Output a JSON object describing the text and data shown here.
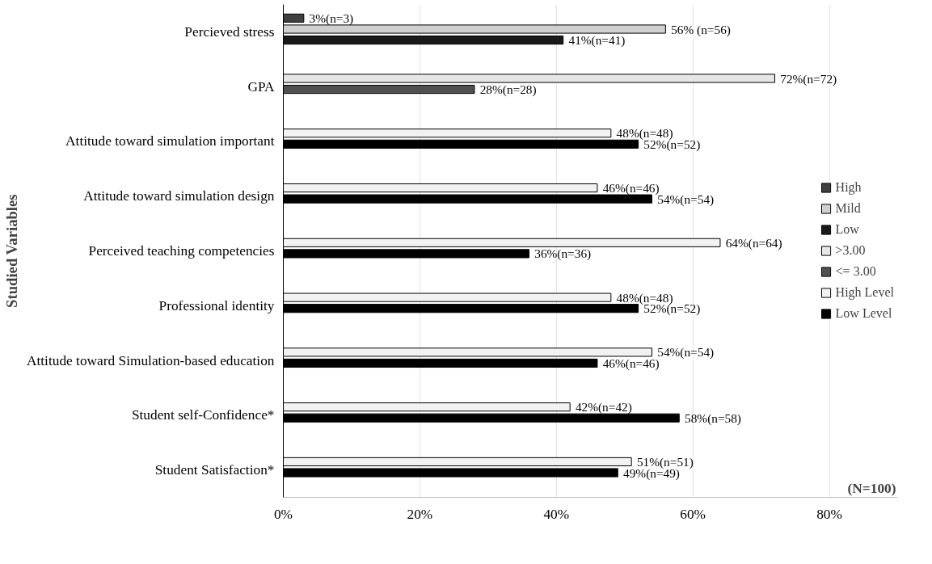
{
  "chart_data": {
    "type": "bar",
    "orientation": "horizontal",
    "ylabel": "Studied Variables",
    "categories": [
      "Percieved stress",
      "GPA",
      "Attitude toward simulation important",
      "Attitude toward simulation design",
      "Perceived teaching competencies",
      "Professional identity",
      "Attitude toward Simulation-based education",
      "Student self-Confidence*",
      "Student Satisfaction*"
    ],
    "series": [
      {
        "name": "High",
        "color": "#404040",
        "values": [
          3,
          null,
          null,
          null,
          null,
          null,
          null,
          null,
          null
        ],
        "value_labels": [
          "3%(n=3)",
          null,
          null,
          null,
          null,
          null,
          null,
          null,
          null
        ]
      },
      {
        "name": "Mild",
        "color": "#d0d0d0",
        "values": [
          56,
          null,
          null,
          null,
          null,
          null,
          null,
          null,
          null
        ],
        "value_labels": [
          "56% (n=56)",
          null,
          null,
          null,
          null,
          null,
          null,
          null,
          null
        ]
      },
      {
        "name": "Low",
        "color": "#1a1a1a",
        "values": [
          41,
          null,
          null,
          null,
          null,
          null,
          null,
          null,
          null
        ],
        "value_labels": [
          "41%(n=41)",
          null,
          null,
          null,
          null,
          null,
          null,
          null,
          null
        ]
      },
      {
        "name": ">3.00",
        "color": "#e6e6e6",
        "values": [
          null,
          72,
          null,
          null,
          null,
          null,
          null,
          null,
          null
        ],
        "value_labels": [
          null,
          "72%(n=72)",
          null,
          null,
          null,
          null,
          null,
          null,
          null
        ]
      },
      {
        "name": "<= 3.00",
        "color": "#505050",
        "values": [
          null,
          28,
          null,
          null,
          null,
          null,
          null,
          null,
          null
        ],
        "value_labels": [
          null,
          "28%(n=28)",
          null,
          null,
          null,
          null,
          null,
          null,
          null
        ]
      },
      {
        "name": "High Level",
        "color": "#f2f2f2",
        "values": [
          null,
          null,
          48,
          46,
          64,
          48,
          54,
          42,
          51
        ],
        "value_labels": [
          null,
          null,
          "48%(n=48)",
          "46%(n=46)",
          "64%(n=64)",
          "48%(n=48)",
          "54%(n=54)",
          "42%(n=42)",
          "51%(n=51)"
        ]
      },
      {
        "name": "Low Level",
        "color": "#000000",
        "values": [
          null,
          null,
          52,
          54,
          36,
          52,
          46,
          58,
          49
        ],
        "value_labels": [
          null,
          null,
          "52%(n=52)",
          "54%(n=54)",
          "36%(n=36)",
          "52%(n=52)",
          "46%(n=46)",
          "58%(n=58)",
          "49%(n=49)"
        ]
      }
    ],
    "xlim": [
      0,
      90
    ],
    "xticks": [
      {
        "value": 0,
        "label": "0%"
      },
      {
        "value": 20,
        "label": "20%"
      },
      {
        "value": 40,
        "label": "40%"
      },
      {
        "value": 60,
        "label": "60%"
      },
      {
        "value": 80,
        "label": "80%"
      }
    ],
    "grid": "x",
    "legend": "right",
    "annotations": [
      "(N=100)"
    ]
  }
}
